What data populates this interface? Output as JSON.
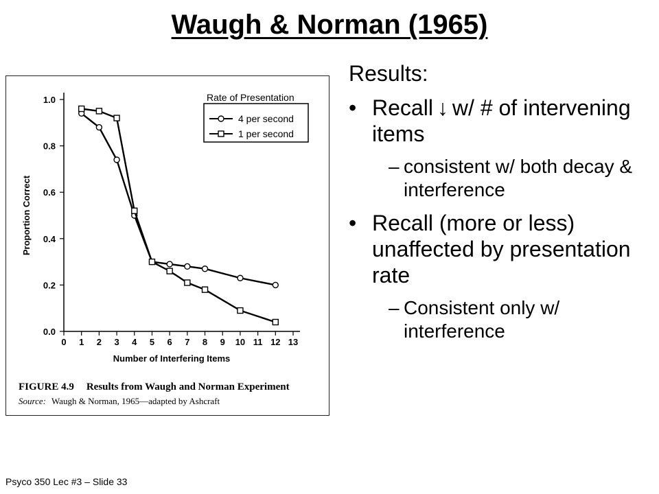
{
  "slide": {
    "title": "Waugh & Norman (1965)",
    "footer": "Psyco 350 Lec #3 – Slide 33"
  },
  "content": {
    "heading": "Results:",
    "bullet_1": {
      "text_before": "Recall",
      "arrow_glyph": "↓",
      "text_after": "w/ # of intervening items",
      "sub": "consistent w/ both decay & interference"
    },
    "bullet_2": {
      "text": "Recall (more or less) unaffected by presentation rate",
      "sub": "Consistent only w/ interference"
    }
  },
  "figure": {
    "caption_label": "FIGURE 4.9",
    "caption_title": "Results from Waugh and Norman Experiment",
    "source_label": "Source:",
    "source_text": "Waugh & Norman, 1965—adapted by Ashcraft"
  },
  "chart_data": {
    "type": "line",
    "xlabel": "Number of Interfering Items",
    "ylabel": "Proportion Correct",
    "xlim": [
      0,
      13
    ],
    "ylim": [
      0.0,
      1.0
    ],
    "x_ticks": [
      0,
      1,
      2,
      3,
      4,
      5,
      6,
      7,
      8,
      9,
      10,
      11,
      12,
      13
    ],
    "y_ticks": [
      0.0,
      0.2,
      0.4,
      0.6,
      0.8,
      1.0
    ],
    "y_tick_labels": [
      "0.0",
      "0.2",
      "0.4",
      "0.6",
      "0.8",
      "1.0"
    ],
    "legend_title": "Rate of Presentation",
    "legend_position": "top-right",
    "grid": false,
    "series": [
      {
        "name": "4 per second",
        "marker": "circle",
        "x": [
          1,
          2,
          3,
          4,
          5,
          6,
          7,
          8,
          10,
          12
        ],
        "y": [
          0.94,
          0.88,
          0.74,
          0.5,
          0.3,
          0.29,
          0.28,
          0.27,
          0.23,
          0.2
        ]
      },
      {
        "name": "1 per second",
        "marker": "square",
        "x": [
          1,
          2,
          3,
          4,
          5,
          6,
          7,
          8,
          10,
          12
        ],
        "y": [
          0.96,
          0.95,
          0.92,
          0.52,
          0.3,
          0.26,
          0.21,
          0.18,
          0.09,
          0.04
        ]
      }
    ]
  }
}
